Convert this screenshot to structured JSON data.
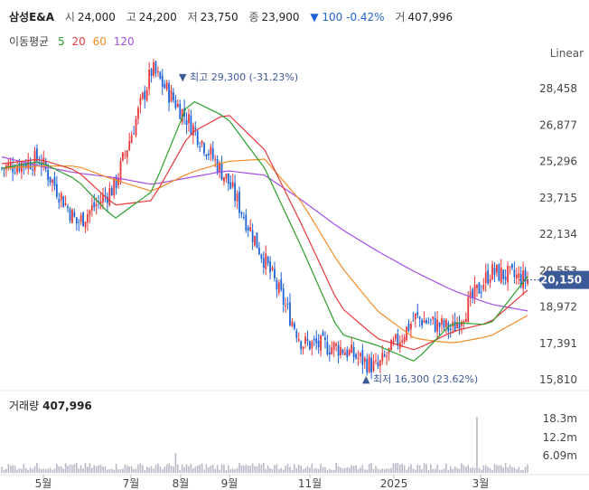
{
  "header": {
    "name": "삼성E&A",
    "open_label": "시",
    "open": "24,000",
    "high_label": "고",
    "high": "24,200",
    "low_label": "저",
    "low": "23,750",
    "close_label": "종",
    "close": "23,900",
    "change": "▼ 100 -0.42%",
    "volume_label": "거",
    "volume": "407,996"
  },
  "ma_legend": {
    "title": "이동평균",
    "items": [
      {
        "label": "5",
        "color": "#2ca02c"
      },
      {
        "label": "20",
        "color": "#e8393c"
      },
      {
        "label": "60",
        "color": "#f28c28"
      },
      {
        "label": "120",
        "color": "#a64ee8"
      }
    ]
  },
  "scale_label": "Linear",
  "annotations": {
    "max_label": "▼ 최고 29,300 (-31.23%)",
    "min_label": "▲ 최저 16,300 (23.62%)",
    "current_price": "20,150"
  },
  "volume_panel": {
    "label": "거래량",
    "value": "407,996"
  },
  "colors": {
    "up": "#e8393c",
    "down": "#1e64d4",
    "price_tag": "#3d5a98",
    "volume": "#b9b9c8"
  },
  "chart_data": {
    "type": "candlestick",
    "ylim": [
      15810,
      30039
    ],
    "y_ticks": [
      "28,458",
      "26,877",
      "25,296",
      "23,715",
      "22,134",
      "20,553",
      "18,972",
      "17,391",
      "15,810"
    ],
    "x_ticks": [
      "5월",
      "7월",
      "8월",
      "9월",
      "11월",
      "2025",
      "3월"
    ],
    "volume_ticks": [
      "18.3m",
      "12.2m",
      "6.09m"
    ],
    "grid": false,
    "close_approx": [
      {
        "x": "2024-04",
        "y": 25000
      },
      {
        "x": "2024-05",
        "y": 25400
      },
      {
        "x": "2024-06",
        "y": 22600
      },
      {
        "x": "2024-07",
        "y": 24200
      },
      {
        "x": "2024-08",
        "y": 29300
      },
      {
        "x": "2024-08",
        "y": 27000
      },
      {
        "x": "2024-09",
        "y": 24500
      },
      {
        "x": "2024-10",
        "y": 21000
      },
      {
        "x": "2024-11",
        "y": 17400
      },
      {
        "x": "2024-12",
        "y": 17200
      },
      {
        "x": "2025-01",
        "y": 16300
      },
      {
        "x": "2025-02",
        "y": 18500
      },
      {
        "x": "2025-03",
        "y": 18000
      },
      {
        "x": "2025-03",
        "y": 20500
      },
      {
        "x": "2025-04",
        "y": 20150
      }
    ],
    "ma5": [
      25000,
      25300,
      24500,
      22800,
      24000,
      28000,
      27200,
      25000,
      21500,
      17800,
      17300,
      16600,
      18300,
      18200,
      20300
    ],
    "ma20": [
      25200,
      25400,
      24900,
      23400,
      23600,
      26500,
      27400,
      25800,
      22500,
      19000,
      17600,
      17100,
      17900,
      18300,
      19700
    ],
    "ma60": [
      25000,
      25100,
      25100,
      24500,
      24000,
      24800,
      25300,
      25400,
      23500,
      20800,
      18800,
      17600,
      17400,
      17700,
      18600
    ],
    "ma120": [
      25500,
      25100,
      24800,
      24600,
      24300,
      24600,
      24900,
      24700,
      23600,
      22400,
      21400,
      20500,
      19700,
      19100,
      18800
    ]
  }
}
